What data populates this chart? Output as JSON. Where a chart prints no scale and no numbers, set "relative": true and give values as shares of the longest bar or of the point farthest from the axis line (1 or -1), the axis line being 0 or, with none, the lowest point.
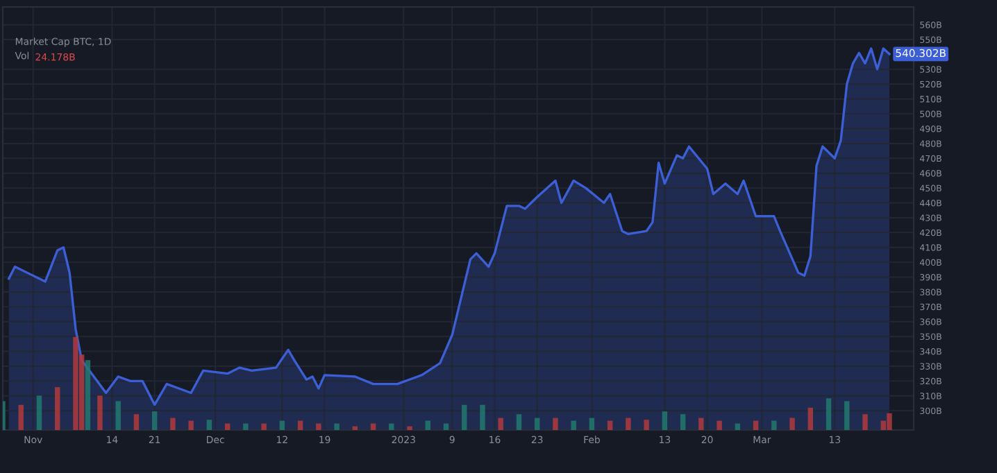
{
  "chart_data": [
    {
      "type": "area",
      "title": "Market Cap BTC, 1D",
      "series": [
        {
          "color": "#3d5fd6",
          "x": [
            "2022-10-28",
            "2022-10-29",
            "2022-10-31",
            "2022-11-03",
            "2022-11-05",
            "2022-11-06",
            "2022-11-07",
            "2022-11-08",
            "2022-11-09",
            "2022-11-11",
            "2022-11-13",
            "2022-11-15",
            "2022-11-17",
            "2022-11-19",
            "2022-11-21",
            "2022-11-23",
            "2022-11-27",
            "2022-11-29",
            "2022-12-03",
            "2022-12-05",
            "2022-12-07",
            "2022-12-11",
            "2022-12-13",
            "2022-12-14",
            "2022-12-16",
            "2022-12-17",
            "2022-12-18",
            "2022-12-19",
            "2022-12-24",
            "2022-12-27",
            "2022-12-31",
            "2023-01-04",
            "2023-01-07",
            "2023-01-09",
            "2023-01-12",
            "2023-01-13",
            "2023-01-15",
            "2023-01-16",
            "2023-01-18",
            "2023-01-20",
            "2023-01-21",
            "2023-01-23",
            "2023-01-26",
            "2023-01-27",
            "2023-01-29",
            "2023-01-31",
            "2023-02-03",
            "2023-02-04",
            "2023-02-06",
            "2023-02-07",
            "2023-02-10",
            "2023-02-11",
            "2023-02-12",
            "2023-02-13",
            "2023-02-15",
            "2023-02-16",
            "2023-02-17",
            "2023-02-20",
            "2023-02-21",
            "2023-02-23",
            "2023-02-25",
            "2023-02-26",
            "2023-02-28",
            "2023-03-03",
            "2023-03-04",
            "2023-03-07",
            "2023-03-08",
            "2023-03-09",
            "2023-03-10",
            "2023-03-11",
            "2023-03-13",
            "2023-03-14",
            "2023-03-15",
            "2023-03-16",
            "2023-03-17",
            "2023-03-18",
            "2023-03-19",
            "2023-03-20",
            "2023-03-21",
            "2023-03-22"
          ],
          "values": [
            389,
            397,
            393,
            387,
            408,
            410,
            393,
            355,
            334,
            323,
            312,
            323,
            320,
            320,
            304,
            318,
            312,
            327,
            325,
            329,
            327,
            329,
            341,
            334,
            321,
            323,
            315,
            324,
            323,
            318,
            318,
            324,
            332,
            351,
            402,
            406,
            397,
            406,
            438,
            438,
            436,
            444,
            455,
            440,
            455,
            450,
            440,
            446,
            421,
            419,
            421,
            427,
            467,
            453,
            472,
            470,
            478,
            463,
            446,
            453,
            446,
            455,
            431,
            431,
            421,
            393,
            391,
            404,
            465,
            478,
            470,
            482,
            520,
            534,
            541,
            534,
            544,
            530,
            544,
            540.302
          ],
          "value_labels": [
            null,
            null,
            null,
            null,
            null,
            null,
            null,
            null,
            null,
            null,
            null,
            null,
            null,
            null,
            null,
            null,
            null,
            null,
            null,
            null,
            null,
            null,
            null,
            null,
            null,
            null,
            null,
            null,
            null,
            null,
            null,
            null,
            null,
            null,
            null,
            null,
            null,
            null,
            null,
            null,
            null,
            null,
            null,
            null,
            null,
            null,
            null,
            null,
            null,
            null,
            null,
            null,
            null,
            null,
            null,
            null,
            null,
            null,
            null,
            null,
            null,
            null,
            null,
            null,
            null,
            null,
            null,
            null,
            null,
            null,
            null,
            null,
            null,
            null,
            null,
            null,
            null,
            null,
            null,
            "540.302B"
          ]
        }
      ],
      "xlim": [
        "2022-10-27",
        "2023-03-26"
      ],
      "xticks": [
        {
          "value": "2022-11-01",
          "label": "Nov"
        },
        {
          "value": "2022-11-14",
          "label": "14"
        },
        {
          "value": "2022-11-21",
          "label": "21"
        },
        {
          "value": "2022-12-01",
          "label": "Dec"
        },
        {
          "value": "2022-12-12",
          "label": "12"
        },
        {
          "value": "2022-12-19",
          "label": "19"
        },
        {
          "value": "2023-01-01",
          "label": "2023"
        },
        {
          "value": "2023-01-09",
          "label": "9"
        },
        {
          "value": "2023-01-16",
          "label": "16"
        },
        {
          "value": "2023-01-23",
          "label": "23"
        },
        {
          "value": "2023-02-01",
          "label": "Feb"
        },
        {
          "value": "2023-02-13",
          "label": "13"
        },
        {
          "value": "2023-02-20",
          "label": "20"
        },
        {
          "value": "2023-03-01",
          "label": "Mar"
        },
        {
          "value": "2023-03-13",
          "label": "13"
        }
      ],
      "ylim": [
        287,
        572
      ],
      "yticks": [
        {
          "value": 300,
          "label": "300B"
        },
        {
          "value": 310,
          "label": "310B"
        },
        {
          "value": 320,
          "label": "320B"
        },
        {
          "value": 330,
          "label": "330B"
        },
        {
          "value": 340,
          "label": "340B"
        },
        {
          "value": 350,
          "label": "350B"
        },
        {
          "value": 360,
          "label": "360B"
        },
        {
          "value": 370,
          "label": "370B"
        },
        {
          "value": 380,
          "label": "380B"
        },
        {
          "value": 390,
          "label": "390B"
        },
        {
          "value": 400,
          "label": "400B"
        },
        {
          "value": 410,
          "label": "410B"
        },
        {
          "value": 420,
          "label": "420B"
        },
        {
          "value": 430,
          "label": "430B"
        },
        {
          "value": 440,
          "label": "440B"
        },
        {
          "value": 450,
          "label": "450B"
        },
        {
          "value": 460,
          "label": "460B"
        },
        {
          "value": 470,
          "label": "470B"
        },
        {
          "value": 480,
          "label": "480B"
        },
        {
          "value": 490,
          "label": "490B"
        },
        {
          "value": 500,
          "label": "500B"
        },
        {
          "value": 510,
          "label": "510B"
        },
        {
          "value": 520,
          "label": "520B"
        },
        {
          "value": 530,
          "label": "530B"
        },
        {
          "value": 550,
          "label": "550B"
        },
        {
          "value": 560,
          "label": "560B"
        }
      ],
      "grid": true
    },
    {
      "type": "bar",
      "title": "Vol",
      "relative": true,
      "annotations": [
        "24.178B"
      ],
      "series": [
        {
          "color": "#b23a3c",
          "x": [
            "2022-10-27",
            "2022-10-30",
            "2022-11-02",
            "2022-11-05",
            "2022-11-08",
            "2022-11-09",
            "2022-11-10",
            "2022-11-12",
            "2022-11-15",
            "2022-11-18",
            "2022-11-21",
            "2022-11-24",
            "2022-11-27",
            "2022-11-30",
            "2022-12-03",
            "2022-12-06",
            "2022-12-09",
            "2022-12-12",
            "2022-12-15",
            "2022-12-18",
            "2022-12-21",
            "2022-12-24",
            "2022-12-27",
            "2022-12-30",
            "2023-01-02",
            "2023-01-05",
            "2023-01-08",
            "2023-01-11",
            "2023-01-14",
            "2023-01-17",
            "2023-01-20",
            "2023-01-23",
            "2023-01-26",
            "2023-01-29",
            "2023-02-01",
            "2023-02-04",
            "2023-02-07",
            "2023-02-10",
            "2023-02-13",
            "2023-02-16",
            "2023-02-19",
            "2023-02-22",
            "2023-02-25",
            "2023-02-28",
            "2023-03-03",
            "2023-03-06",
            "2023-03-09",
            "2023-03-12",
            "2023-03-15",
            "2023-03-18",
            "2023-03-21",
            "2023-03-22"
          ],
          "values": [
            0.31,
            0.27,
            0.37,
            0.46,
            1,
            0.81,
            0.75,
            0.37,
            0.31,
            0.17,
            0.2,
            0.13,
            0.1,
            0.11,
            0.07,
            0.07,
            0.07,
            0.1,
            0.1,
            0.07,
            0.07,
            0.04,
            0.07,
            0.07,
            0.04,
            0.1,
            0.07,
            0.27,
            0.27,
            0.13,
            0.17,
            0.13,
            0.13,
            0.1,
            0.13,
            0.1,
            0.13,
            0.11,
            0.2,
            0.17,
            0.13,
            0.1,
            0.07,
            0.1,
            0.1,
            0.13,
            0.24,
            0.34,
            0.31,
            0.17,
            0.1,
            0.18
          ],
          "colors": [
            "#22796f",
            "#b23a3c",
            "#22796f",
            "#b23a3c",
            "#b23a3c",
            "#b23a3c",
            "#22796f",
            "#b23a3c",
            "#22796f",
            "#b23a3c",
            "#22796f",
            "#b23a3c",
            "#b23a3c",
            "#22796f",
            "#b23a3c",
            "#22796f",
            "#b23a3c",
            "#22796f",
            "#b23a3c",
            "#b23a3c",
            "#22796f",
            "#b23a3c",
            "#b23a3c",
            "#22796f",
            "#b23a3c",
            "#22796f",
            "#22796f",
            "#22796f",
            "#22796f",
            "#b23a3c",
            "#22796f",
            "#22796f",
            "#b23a3c",
            "#22796f",
            "#22796f",
            "#b23a3c",
            "#b23a3c",
            "#b23a3c",
            "#22796f",
            "#22796f",
            "#b23a3c",
            "#b23a3c",
            "#22796f",
            "#b23a3c",
            "#22796f",
            "#b23a3c",
            "#b23a3c",
            "#22796f",
            "#22796f",
            "#b23a3c",
            "#b23a3c",
            "#b23a3c"
          ]
        }
      ],
      "xlim": [
        "2022-10-27",
        "2023-03-26"
      ]
    }
  ]
}
